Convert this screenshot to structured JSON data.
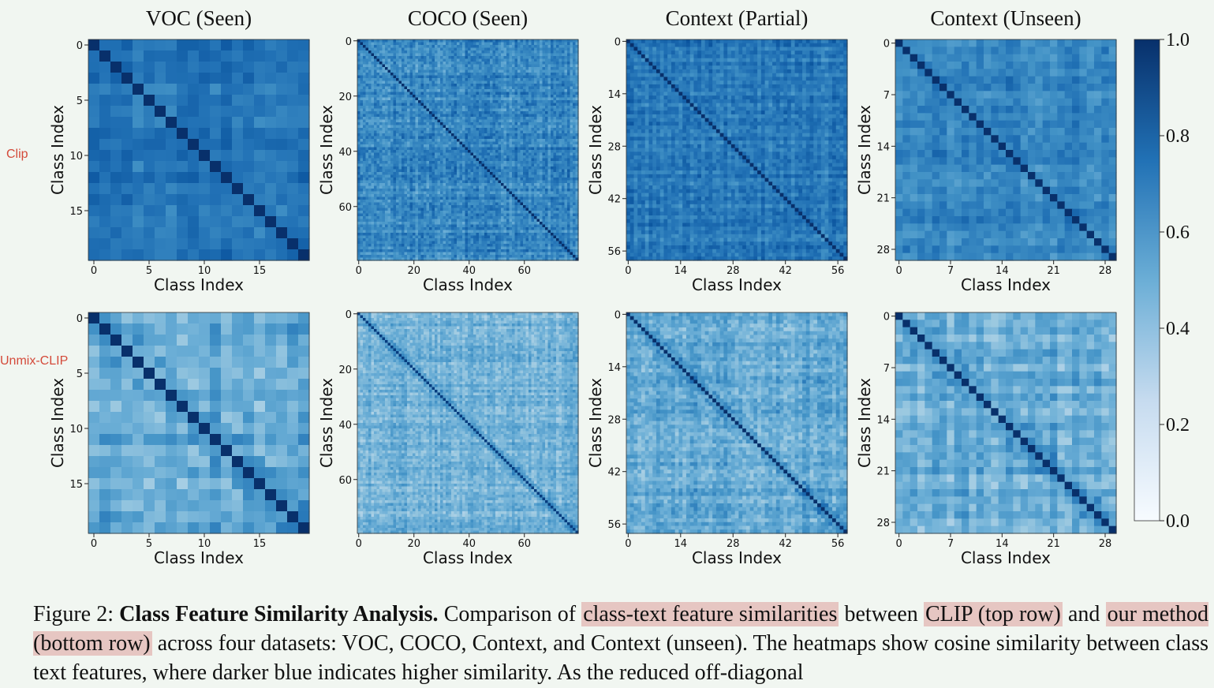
{
  "figure": {
    "column_titles": [
      "VOC (Seen)",
      "COCO (Seen)",
      "Context (Partial)",
      "Context (Unseen)"
    ],
    "row_labels": [
      "Clip",
      "Unmix-CLIP"
    ],
    "colors": {
      "dark": "#0b3f79",
      "mid": "#4a98c9",
      "light": "#f4fafd",
      "row_label": "#d44a3a"
    }
  },
  "chart_data": {
    "type": "heatmap",
    "axis_label": "Class Index",
    "colorbar": {
      "ticks": [
        "1.0",
        "0.8",
        "0.6",
        "0.4",
        "0.2",
        "0.0"
      ],
      "range": [
        0,
        1
      ],
      "colormap": "Blues"
    },
    "panels": [
      {
        "row": "Clip",
        "dataset": "VOC (Seen)",
        "n": 20,
        "mean": 0.74,
        "spread": 0.05,
        "diag": 1.0,
        "ticks": [
          0,
          5,
          10,
          15
        ]
      },
      {
        "row": "Clip",
        "dataset": "COCO (Seen)",
        "n": 80,
        "mean": 0.66,
        "spread": 0.08,
        "diag": 1.0,
        "ticks": [
          0,
          20,
          40,
          60
        ]
      },
      {
        "row": "Clip",
        "dataset": "Context (Partial)",
        "n": 59,
        "mean": 0.72,
        "spread": 0.06,
        "diag": 1.0,
        "ticks": [
          0,
          14,
          28,
          42,
          56
        ]
      },
      {
        "row": "Clip",
        "dataset": "Context (Unseen)",
        "n": 30,
        "mean": 0.68,
        "spread": 0.06,
        "diag": 1.0,
        "ticks": [
          0,
          7,
          14,
          21,
          28
        ]
      },
      {
        "row": "Unmix-CLIP",
        "dataset": "VOC (Seen)",
        "n": 20,
        "mean": 0.52,
        "spread": 0.08,
        "diag": 1.0,
        "ticks": [
          0,
          5,
          10,
          15
        ]
      },
      {
        "row": "Unmix-CLIP",
        "dataset": "COCO (Seen)",
        "n": 80,
        "mean": 0.48,
        "spread": 0.07,
        "diag": 0.95,
        "ticks": [
          0,
          20,
          40,
          60
        ]
      },
      {
        "row": "Unmix-CLIP",
        "dataset": "Context (Partial)",
        "n": 59,
        "mean": 0.52,
        "spread": 0.08,
        "diag": 1.0,
        "ticks": [
          0,
          14,
          28,
          42,
          56
        ]
      },
      {
        "row": "Unmix-CLIP",
        "dataset": "Context (Unseen)",
        "n": 30,
        "mean": 0.5,
        "spread": 0.08,
        "diag": 1.0,
        "ticks": [
          0,
          7,
          14,
          21,
          28
        ]
      }
    ]
  },
  "caption": {
    "prefix": "Figure 2: ",
    "bold": "Class Feature Similarity Analysis.",
    "t1": " Comparison of ",
    "h1": "class-text feature similarities",
    "t2": " between ",
    "h2": "CLIP (top row)",
    "t3": " and ",
    "h3": "our method (bottom row)",
    "t4": " across four datasets: VOC, COCO, Context, and Context (unseen). The heatmaps show cosine similarity between class text features, where darker blue indicates higher similarity. As the reduced off-diagonal"
  }
}
